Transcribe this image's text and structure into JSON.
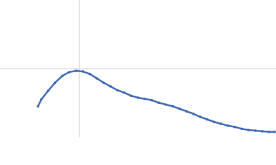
{
  "chart_data": {
    "type": "scatter",
    "x": [
      0.83,
      0.9,
      1.05,
      1.2,
      1.36,
      1.51,
      1.66,
      1.81,
      1.96,
      2.11,
      2.26,
      2.41,
      2.56,
      2.71,
      2.86,
      3.01,
      3.16,
      3.31,
      3.46,
      3.61,
      3.77,
      3.92,
      4.07,
      4.22,
      4.37,
      4.52,
      4.67,
      4.82,
      4.97,
      5.12,
      5.27,
      5.42,
      5.57,
      5.72,
      5.87,
      5.99
    ],
    "values": [
      0.5,
      0.61,
      0.75,
      0.88,
      0.99,
      1.05,
      1.07,
      1.06,
      1.02,
      0.95,
      0.88,
      0.82,
      0.76,
      0.72,
      0.67,
      0.64,
      0.62,
      0.6,
      0.56,
      0.53,
      0.5,
      0.46,
      0.42,
      0.38,
      0.33,
      0.29,
      0.25,
      0.22,
      0.19,
      0.17,
      0.14,
      0.12,
      0.11,
      0.1,
      0.09,
      0.09
    ],
    "color": "#3a64b0",
    "xlim": [
      0,
      6.02
    ],
    "ylim": [
      0,
      2.208
    ],
    "crosshair": {
      "x": 1.732,
      "y": 1.104
    },
    "crosshair_color": "#cccccc"
  }
}
